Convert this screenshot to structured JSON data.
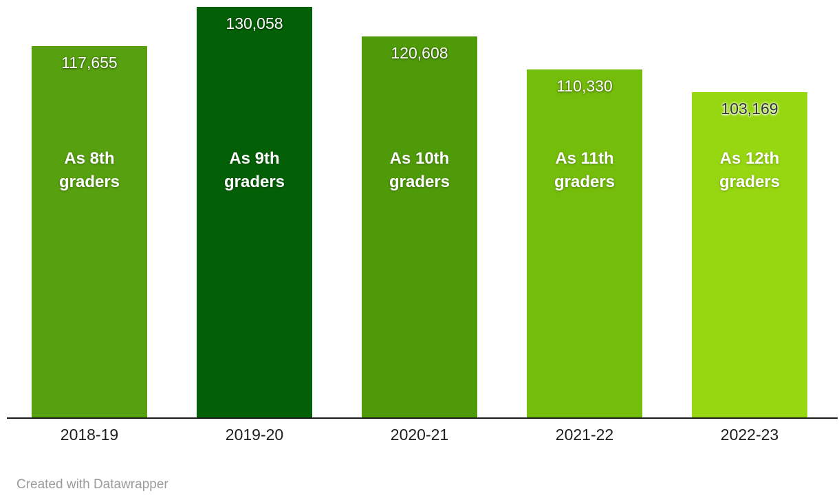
{
  "chart_data": {
    "type": "bar",
    "categories": [
      "2018-19",
      "2019-20",
      "2020-21",
      "2021-22",
      "2022-23"
    ],
    "values": [
      117655,
      130058,
      120608,
      110330,
      103169
    ],
    "value_labels": [
      "117,655",
      "130,058",
      "120,608",
      "110,330",
      "103,169"
    ],
    "bar_labels": [
      "As 8th\ngraders",
      "As 9th\ngraders",
      "As 10th\ngraders",
      "As 11th\ngraders",
      "As 12th\ngraders"
    ],
    "bar_colors": [
      "#57a00f",
      "#046007",
      "#4f9a08",
      "#74bd0b",
      "#97d711"
    ],
    "value_label_colors": [
      "#ffffff",
      "#ffffff",
      "#ffffff",
      "#ffffff",
      "#333333"
    ],
    "title": "",
    "xlabel": "",
    "ylabel": "",
    "ylim": [
      0,
      130058
    ],
    "grid": false,
    "legend": "none",
    "axis_line_color": "#1a1a1a",
    "tick_label_color": "#1d1d1d"
  },
  "footer": {
    "credit": "Created with Datawrapper"
  }
}
